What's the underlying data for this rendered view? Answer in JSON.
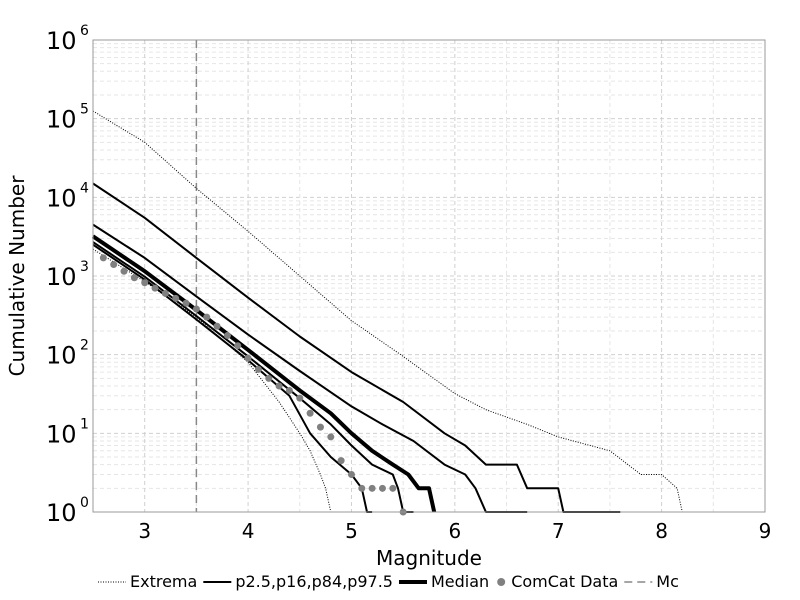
{
  "chart_data": {
    "type": "line",
    "title": "",
    "xlabel": "Magnitude",
    "ylabel": "Cumulative Number",
    "xlim": [
      2.5,
      9
    ],
    "ylim": [
      1,
      1000000
    ],
    "yscale": "log",
    "grid": true,
    "x_ticks": [
      "3",
      "4",
      "5",
      "6",
      "7",
      "8",
      "9"
    ],
    "y_ticks": [
      {
        "base": "10",
        "exp": "0",
        "value": 1
      },
      {
        "base": "10",
        "exp": "1",
        "value": 10
      },
      {
        "base": "10",
        "exp": "2",
        "value": 100
      },
      {
        "base": "10",
        "exp": "3",
        "value": 1000
      },
      {
        "base": "10",
        "exp": "4",
        "value": 10000
      },
      {
        "base": "10",
        "exp": "5",
        "value": 100000
      },
      {
        "base": "10",
        "exp": "6",
        "value": 1000000
      }
    ],
    "legend_placement": "bottom",
    "legend": [
      {
        "label": "Extrema",
        "style": "dotted"
      },
      {
        "label": "p2.5,p16,p84,p97.5",
        "style": "solid"
      },
      {
        "label": "Median",
        "style": "bold"
      },
      {
        "label": "ComCat Data",
        "style": "marker"
      },
      {
        "label": "Mc",
        "style": "dashed"
      }
    ],
    "mc": 3.5,
    "series": [
      {
        "role": "extrema-upper",
        "style": "dotted",
        "points": [
          [
            2.5,
            125000
          ],
          [
            3.0,
            50000
          ],
          [
            3.5,
            13000
          ],
          [
            4.0,
            3700
          ],
          [
            4.5,
            1000
          ],
          [
            5.0,
            270
          ],
          [
            5.5,
            95
          ],
          [
            6.0,
            32
          ],
          [
            6.3,
            20
          ],
          [
            6.7,
            13
          ],
          [
            7.0,
            9
          ],
          [
            7.5,
            6
          ],
          [
            7.8,
            3
          ],
          [
            8.0,
            3
          ],
          [
            8.15,
            2
          ],
          [
            8.2,
            1
          ]
        ]
      },
      {
        "role": "extrema-lower",
        "style": "dotted",
        "points": [
          [
            2.5,
            2200
          ],
          [
            3.0,
            850
          ],
          [
            3.5,
            300
          ],
          [
            4.0,
            80
          ],
          [
            4.3,
            25
          ],
          [
            4.5,
            10
          ],
          [
            4.6,
            6
          ],
          [
            4.7,
            3
          ],
          [
            4.75,
            2
          ],
          [
            4.8,
            1
          ]
        ]
      },
      {
        "role": "p97.5",
        "style": "solid",
        "points": [
          [
            2.5,
            15000
          ],
          [
            3.0,
            5500
          ],
          [
            3.5,
            1700
          ],
          [
            4.0,
            530
          ],
          [
            4.5,
            170
          ],
          [
            5.0,
            60
          ],
          [
            5.5,
            25
          ],
          [
            5.9,
            10
          ],
          [
            6.1,
            7
          ],
          [
            6.3,
            4
          ],
          [
            6.6,
            4
          ],
          [
            6.7,
            2
          ],
          [
            7.0,
            2
          ],
          [
            7.05,
            1
          ],
          [
            7.6,
            1
          ]
        ]
      },
      {
        "role": "p84",
        "style": "solid",
        "points": [
          [
            2.5,
            4500
          ],
          [
            3.0,
            1700
          ],
          [
            3.5,
            550
          ],
          [
            4.0,
            180
          ],
          [
            4.5,
            62
          ],
          [
            5.0,
            22
          ],
          [
            5.3,
            13
          ],
          [
            5.6,
            8
          ],
          [
            5.9,
            4
          ],
          [
            6.1,
            3
          ],
          [
            6.2,
            2
          ],
          [
            6.3,
            1
          ],
          [
            6.7,
            1
          ]
        ]
      },
      {
        "role": "median",
        "style": "bold",
        "points": [
          [
            2.5,
            3200
          ],
          [
            3.0,
            1150
          ],
          [
            3.5,
            370
          ],
          [
            4.0,
            115
          ],
          [
            4.5,
            35
          ],
          [
            4.8,
            18
          ],
          [
            5.0,
            10
          ],
          [
            5.2,
            6
          ],
          [
            5.4,
            4
          ],
          [
            5.55,
            3
          ],
          [
            5.65,
            2
          ],
          [
            5.75,
            2
          ],
          [
            5.8,
            1
          ]
        ]
      },
      {
        "role": "p16",
        "style": "solid",
        "points": [
          [
            2.5,
            2700
          ],
          [
            3.0,
            980
          ],
          [
            3.5,
            310
          ],
          [
            4.0,
            95
          ],
          [
            4.5,
            28
          ],
          [
            4.8,
            13
          ],
          [
            5.0,
            7
          ],
          [
            5.2,
            4
          ],
          [
            5.4,
            3
          ],
          [
            5.45,
            2
          ],
          [
            5.5,
            1
          ],
          [
            5.6,
            1
          ]
        ]
      },
      {
        "role": "p2.5",
        "style": "solid",
        "points": [
          [
            2.5,
            2500
          ],
          [
            3.0,
            900
          ],
          [
            3.5,
            280
          ],
          [
            4.0,
            85
          ],
          [
            4.4,
            30
          ],
          [
            4.6,
            10
          ],
          [
            4.8,
            5
          ],
          [
            5.0,
            3
          ],
          [
            5.1,
            2
          ],
          [
            5.15,
            1
          ],
          [
            5.2,
            1
          ]
        ]
      }
    ],
    "comcat_data": [
      [
        2.6,
        1700
      ],
      [
        2.7,
        1400
      ],
      [
        2.8,
        1150
      ],
      [
        2.9,
        950
      ],
      [
        3.0,
        820
      ],
      [
        3.1,
        700
      ],
      [
        3.2,
        600
      ],
      [
        3.3,
        520
      ],
      [
        3.4,
        450
      ],
      [
        3.5,
        380
      ],
      [
        3.6,
        300
      ],
      [
        3.7,
        230
      ],
      [
        3.8,
        175
      ],
      [
        3.9,
        130
      ],
      [
        4.0,
        90
      ],
      [
        4.1,
        65
      ],
      [
        4.2,
        50
      ],
      [
        4.3,
        40
      ],
      [
        4.4,
        35
      ],
      [
        4.5,
        28
      ],
      [
        4.6,
        18
      ],
      [
        4.7,
        12
      ],
      [
        4.8,
        9
      ],
      [
        4.9,
        4.5
      ],
      [
        5.0,
        3
      ],
      [
        5.1,
        2
      ],
      [
        5.2,
        2
      ],
      [
        5.3,
        2
      ],
      [
        5.4,
        2
      ],
      [
        5.5,
        1
      ]
    ]
  }
}
